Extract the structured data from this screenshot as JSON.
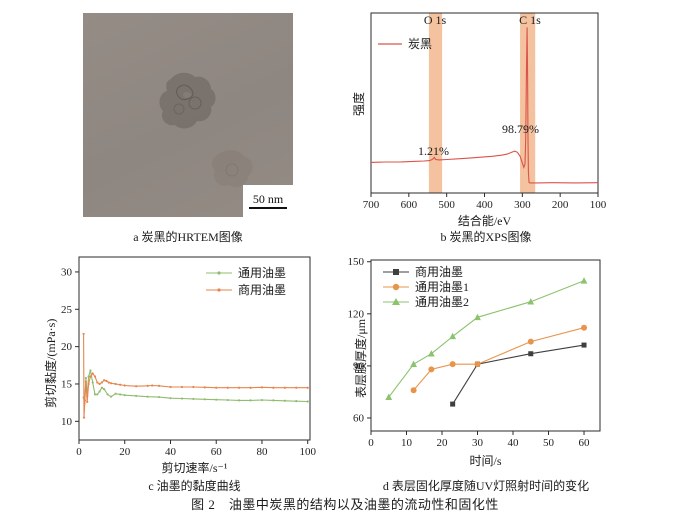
{
  "figure_caption": "图 2　油墨中炭黑的结构以及油墨的流动性和固化性",
  "panel_a": {
    "caption": "a 炭黑的HRTEM图像",
    "scale_bar_label": "50 nm"
  },
  "chart_data": [
    {
      "id": "b",
      "type": "line",
      "title": "b 炭黑的XPS图像",
      "xlabel": "结合能/eV",
      "ylabel": "强度",
      "xlim": [
        700,
        100
      ],
      "ylim": [
        0,
        100
      ],
      "x_axis_reversed": true,
      "xticks": [
        700,
        600,
        500,
        400,
        300,
        200,
        100
      ],
      "yticks": [],
      "grid": false,
      "legend_position": "top-left",
      "band_color": "#f1b183",
      "bands": [
        {
          "label": "O 1s",
          "x_range": [
            547,
            512
          ],
          "percent": "1.21%"
        },
        {
          "label": "C 1s",
          "x_range": [
            306,
            266
          ],
          "percent": "98.79%"
        }
      ],
      "series": [
        {
          "name": "炭黑",
          "color": "#d9544a",
          "marker": null,
          "points": [
            [
              700,
              17.0
            ],
            [
              660,
              17.2
            ],
            [
              620,
              17.3
            ],
            [
              580,
              17.6
            ],
            [
              560,
              17.8
            ],
            [
              545,
              18.0
            ],
            [
              537,
              18.8
            ],
            [
              533,
              19.8
            ],
            [
              529,
              18.6
            ],
            [
              520,
              18.4
            ],
            [
              500,
              18.6
            ],
            [
              470,
              19.0
            ],
            [
              440,
              19.4
            ],
            [
              410,
              19.9
            ],
            [
              380,
              20.4
            ],
            [
              355,
              21.0
            ],
            [
              340,
              21.6
            ],
            [
              328,
              22.6
            ],
            [
              320,
              23.3
            ],
            [
              313,
              22.6
            ],
            [
              306,
              20.4
            ],
            [
              300,
              16.8
            ],
            [
              296,
              14.2
            ],
            [
              293,
              16.0
            ],
            [
              291,
              30
            ],
            [
              289,
              70
            ],
            [
              287.5,
              92
            ],
            [
              286,
              65
            ],
            [
              285,
              30
            ],
            [
              284,
              12
            ],
            [
              282.5,
              6.0
            ],
            [
              280,
              5.6
            ],
            [
              260,
              5.6
            ],
            [
              220,
              5.7
            ],
            [
              160,
              5.6
            ],
            [
              100,
              5.7
            ]
          ]
        }
      ]
    },
    {
      "id": "c",
      "type": "line",
      "title": "c 油墨的黏度曲线",
      "xlabel": "剪切速率/s⁻¹",
      "ylabel": "剪切黏度/(mPa·s)",
      "xlim": [
        0,
        101
      ],
      "ylim": [
        7.5,
        32
      ],
      "xticks": [
        0,
        20,
        40,
        60,
        80,
        100
      ],
      "yticks": [
        10,
        15,
        20,
        25,
        30
      ],
      "grid": false,
      "legend_position": "top-right",
      "series": [
        {
          "name": "通用油墨",
          "color": "#8fbc6f",
          "marker": "dot",
          "points": [
            [
              2,
              13.2
            ],
            [
              2.4,
              12.4
            ],
            [
              3,
              15.8
            ],
            [
              3.6,
              13.4
            ],
            [
              4.2,
              16.0
            ],
            [
              5,
              16.8
            ],
            [
              6,
              15.2
            ],
            [
              7,
              13.6
            ],
            [
              8,
              13.6
            ],
            [
              9,
              14.0
            ],
            [
              10,
              14.5
            ],
            [
              11,
              14.3
            ],
            [
              12.5,
              13.6
            ],
            [
              14,
              13.3
            ],
            [
              16,
              13.7
            ],
            [
              18,
              13.6
            ],
            [
              20,
              13.5
            ],
            [
              25,
              13.4
            ],
            [
              30,
              13.3
            ],
            [
              35,
              13.25
            ],
            [
              40,
              13.1
            ],
            [
              45,
              13.05
            ],
            [
              50,
              13.0
            ],
            [
              55,
              12.95
            ],
            [
              60,
              12.9
            ],
            [
              65,
              12.85
            ],
            [
              70,
              12.8
            ],
            [
              75,
              12.8
            ],
            [
              80,
              12.85
            ],
            [
              85,
              12.8
            ],
            [
              90,
              12.75
            ],
            [
              95,
              12.7
            ],
            [
              100,
              12.65
            ]
          ]
        },
        {
          "name": "商用油墨",
          "color": "#e7854e",
          "marker": "dot",
          "points": [
            [
              2,
              21.7
            ],
            [
              2.2,
              10.5
            ],
            [
              2.6,
              12.8
            ],
            [
              3,
              15.3
            ],
            [
              3.6,
              12.6
            ],
            [
              4.2,
              15.0
            ],
            [
              5,
              16.0
            ],
            [
              6,
              16.4
            ],
            [
              7,
              16.0
            ],
            [
              8,
              15.2
            ],
            [
              9,
              15.0
            ],
            [
              10,
              15.2
            ],
            [
              11,
              15.5
            ],
            [
              12,
              15.4
            ],
            [
              13,
              15.2
            ],
            [
              14,
              15.1
            ],
            [
              16,
              15.0
            ],
            [
              18,
              14.9
            ],
            [
              20,
              14.8
            ],
            [
              25,
              14.7
            ],
            [
              30,
              14.75
            ],
            [
              32,
              14.8
            ],
            [
              35,
              14.75
            ],
            [
              40,
              14.6
            ],
            [
              45,
              14.6
            ],
            [
              50,
              14.6
            ],
            [
              55,
              14.55
            ],
            [
              60,
              14.5
            ],
            [
              65,
              14.5
            ],
            [
              70,
              14.5
            ],
            [
              75,
              14.5
            ],
            [
              80,
              14.55
            ],
            [
              85,
              14.5
            ],
            [
              90,
              14.5
            ],
            [
              95,
              14.5
            ],
            [
              100,
              14.5
            ]
          ]
        }
      ]
    },
    {
      "id": "d",
      "type": "line",
      "title": "d 表层固化厚度随UV灯照射时间的变化",
      "xlabel": "时间/s",
      "ylabel": "表层膜厚度/μm",
      "xlim": [
        0,
        64.5
      ],
      "ylim": [
        52.5,
        151
      ],
      "xticks": [
        0,
        10,
        20,
        30,
        40,
        50,
        60
      ],
      "yticks": [
        60,
        90,
        120,
        150
      ],
      "grid": false,
      "legend_position": "top-left",
      "series": [
        {
          "name": "商用油墨",
          "color": "#3f3f3f",
          "marker": "square",
          "points": [
            [
              23,
              68
            ],
            [
              30,
              91
            ],
            [
              45,
              97
            ],
            [
              60,
              102
            ]
          ]
        },
        {
          "name": "通用油墨1",
          "color": "#e8954c",
          "marker": "circle",
          "points": [
            [
              12,
              76
            ],
            [
              17,
              88
            ],
            [
              23,
              91
            ],
            [
              30,
              91
            ],
            [
              45,
              104
            ],
            [
              60,
              112
            ]
          ]
        },
        {
          "name": "通用油墨2",
          "color": "#8cc36e",
          "marker": "triangle",
          "points": [
            [
              5,
              72
            ],
            [
              12,
              91
            ],
            [
              17,
              97
            ],
            [
              23,
              107
            ],
            [
              30,
              118
            ],
            [
              45,
              127
            ],
            [
              60,
              139
            ]
          ]
        }
      ]
    }
  ]
}
